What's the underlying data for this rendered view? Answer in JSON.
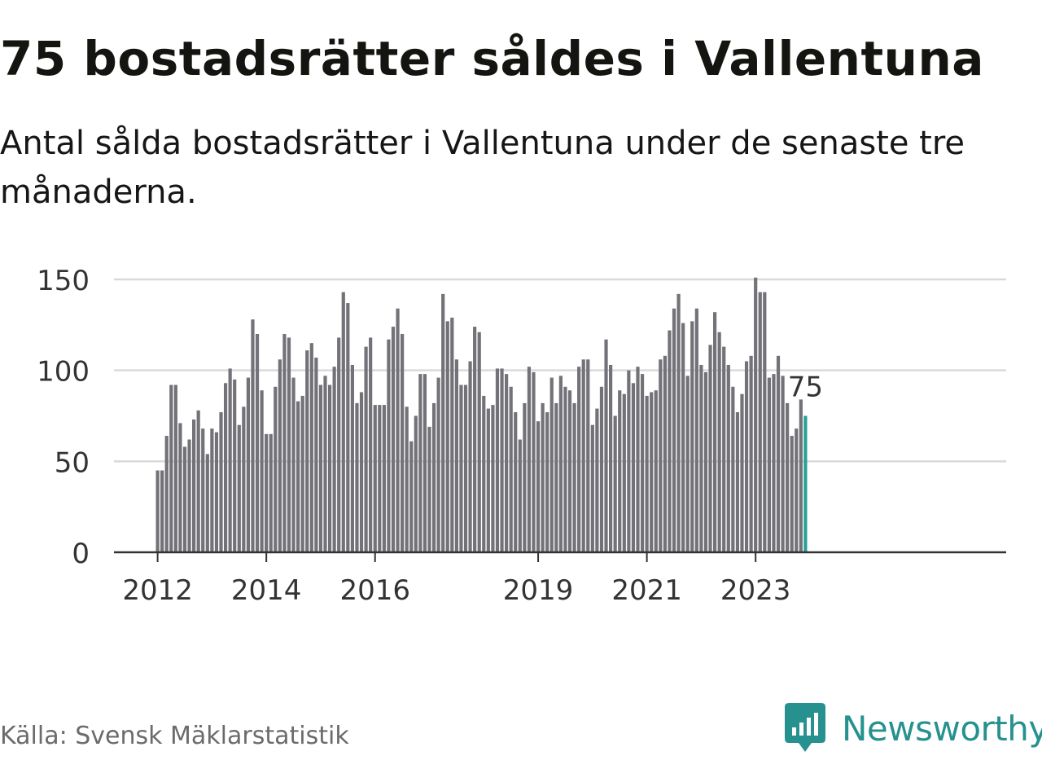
{
  "title": "75 bostadsrätter såldes i Vallentuna",
  "subtitle": "Antal sålda bostadsrätter i Vallentuna under de senaste tre månaderna.",
  "source": "Källa: Svensk Mäklarstatistik",
  "brand": {
    "name": "Newsworthy",
    "icon": "newsworthy-logo-icon",
    "color": "#26918f"
  },
  "colors": {
    "bar": "#737278",
    "highlight": "#26a199",
    "grid": "#d9d9d9",
    "axis": "#333333"
  },
  "chart_data": {
    "type": "bar",
    "title": "75 bostadsrätter såldes i Vallentuna",
    "xlabel": "",
    "ylabel": "",
    "ylim": [
      0,
      150
    ],
    "yticks": [
      0,
      50,
      100,
      150
    ],
    "xticks": [
      {
        "label": "2012",
        "index": 0
      },
      {
        "label": "2014",
        "index": 24
      },
      {
        "label": "2016",
        "index": 48
      },
      {
        "label": "2019",
        "index": 84
      },
      {
        "label": "2021",
        "index": 108
      },
      {
        "label": "2023",
        "index": 132
      }
    ],
    "start": "2012-01",
    "frequency": "monthly",
    "values": [
      45,
      45,
      64,
      92,
      92,
      71,
      58,
      62,
      73,
      78,
      68,
      54,
      68,
      66,
      77,
      93,
      101,
      95,
      70,
      80,
      96,
      128,
      120,
      89,
      65,
      65,
      91,
      106,
      120,
      118,
      96,
      83,
      86,
      111,
      115,
      107,
      92,
      97,
      92,
      102,
      118,
      143,
      137,
      103,
      82,
      88,
      113,
      118,
      81,
      81,
      81,
      117,
      124,
      134,
      120,
      80,
      61,
      75,
      98,
      98,
      69,
      82,
      96,
      142,
      127,
      129,
      106,
      92,
      92,
      105,
      124,
      121,
      86,
      79,
      81,
      101,
      101,
      98,
      91,
      77,
      62,
      82,
      102,
      99,
      72,
      82,
      77,
      96,
      82,
      97,
      91,
      89,
      82,
      102,
      106,
      106,
      70,
      79,
      91,
      117,
      103,
      75,
      89,
      87,
      100,
      93,
      102,
      98,
      86,
      88,
      89,
      106,
      108,
      122,
      134,
      142,
      126,
      97,
      127,
      134,
      103,
      99,
      114,
      132,
      121,
      113,
      103,
      91,
      77,
      87,
      105,
      108,
      151,
      143,
      143,
      96,
      98,
      108,
      97,
      82,
      64,
      68,
      84,
      75
    ],
    "highlight_index": 143,
    "last_label": "75"
  }
}
